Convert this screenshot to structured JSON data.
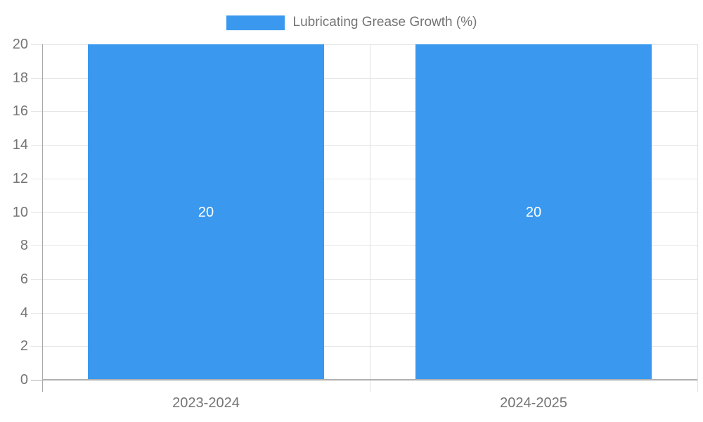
{
  "chart": {
    "background": "#ffffff",
    "legend": {
      "label": "Lubricating Grease Growth (%)",
      "swatch_color": "#3a99ee",
      "position": "top-center"
    },
    "colors": {
      "bar": "#3a99ee",
      "grid": "#e6e6e6",
      "divider": "#e0e0e0",
      "axis": "#a8a8a8",
      "baseline": "#b0b0b0",
      "text": "#757575",
      "bar_label": "#ffffff"
    }
  },
  "chart_data": {
    "type": "bar",
    "title": "",
    "xlabel": "",
    "ylabel": "",
    "categories": [
      "2023-2024",
      "2024-2025"
    ],
    "series": [
      {
        "name": "Lubricating Grease Growth (%)",
        "values": [
          20,
          20
        ],
        "color": "#3a99ee"
      }
    ],
    "data_labels": [
      "20",
      "20"
    ],
    "ylim": [
      0,
      20
    ],
    "ytick_step": 2,
    "yticks": [
      0,
      2,
      4,
      6,
      8,
      10,
      12,
      14,
      16,
      18,
      20
    ],
    "grid": true,
    "legend_position": "top-center"
  }
}
